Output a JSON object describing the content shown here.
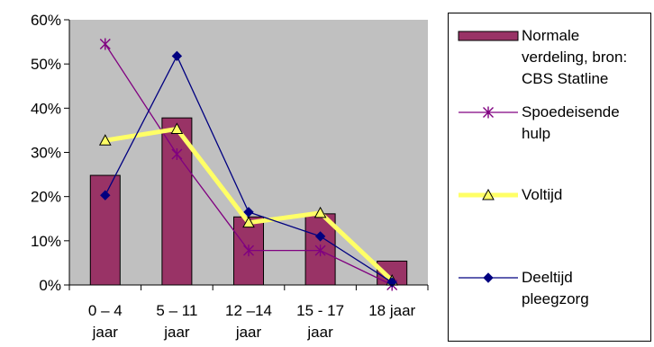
{
  "chart_data": {
    "type": "bar",
    "title": "",
    "xlabel": "",
    "ylabel": "",
    "ylim": [
      0,
      60
    ],
    "yticks": [
      "0%",
      "10%",
      "20%",
      "30%",
      "40%",
      "50%",
      "60%"
    ],
    "categories": [
      [
        "0 – 4",
        "jaar"
      ],
      [
        "5 – 11",
        "jaar"
      ],
      [
        "12 –14",
        "jaar"
      ],
      [
        "15 - 17",
        "jaar"
      ],
      [
        "18 jaar"
      ]
    ],
    "grid": false,
    "legend_position": "right",
    "series": [
      {
        "name": [
          "Normale",
          "verdeling, bron:",
          "CBS Statline"
        ],
        "kind": "bar",
        "color": "#993366",
        "values": [
          24.8,
          37.8,
          15.4,
          16.1,
          5.4
        ]
      },
      {
        "name": [
          "Spoedeisende",
          "hulp"
        ],
        "kind": "line",
        "marker": "asterisk",
        "color": "#800080",
        "values": [
          54.5,
          29.6,
          7.8,
          7.8,
          0.0
        ]
      },
      {
        "name": [
          "Voltijd"
        ],
        "kind": "line",
        "marker": "triangle",
        "color": "#ffff66",
        "values": [
          32.7,
          35.3,
          14.1,
          16.3,
          1.0
        ]
      },
      {
        "name": [
          "Deeltijd",
          "pleegzorg"
        ],
        "kind": "line",
        "marker": "diamond",
        "color": "#000080",
        "values": [
          20.3,
          51.8,
          16.5,
          11.0,
          0.6
        ]
      }
    ]
  }
}
